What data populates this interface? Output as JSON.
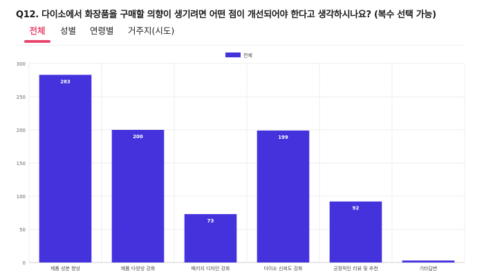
{
  "question": "Q12. 다이소에서 화장품을 구매할 의향이 생기려면 어떤 점이 개선되어야 한다고 생각하시나요? (복수 선택 가능)",
  "tabs": [
    {
      "label": "전체",
      "active": true
    },
    {
      "label": "성별",
      "active": false
    },
    {
      "label": "연령별",
      "active": false
    },
    {
      "label": "거주지(시도)",
      "active": false
    }
  ],
  "colors": {
    "accent": "#e8476e",
    "bar": "#4433dd"
  },
  "chart_data": {
    "type": "bar",
    "categories": [
      "제품 성분 향상",
      "제품 다양성 강화",
      "패키지 디자인 강화",
      "다이소 신뢰도 강화",
      "긍정적인 리뷰 및 추천",
      "기타답변"
    ],
    "series": [
      {
        "name": "전체",
        "values": [
          283,
          200,
          73,
          199,
          92,
          3
        ]
      }
    ],
    "data_labels": [
      "283",
      "200",
      "73",
      "199",
      "92",
      ""
    ],
    "ylim": [
      0,
      300
    ],
    "yticks": [
      0,
      50,
      100,
      150,
      200,
      250,
      300
    ],
    "grid": true,
    "legend": "top-center",
    "title": "",
    "xlabel": "",
    "ylabel": ""
  }
}
